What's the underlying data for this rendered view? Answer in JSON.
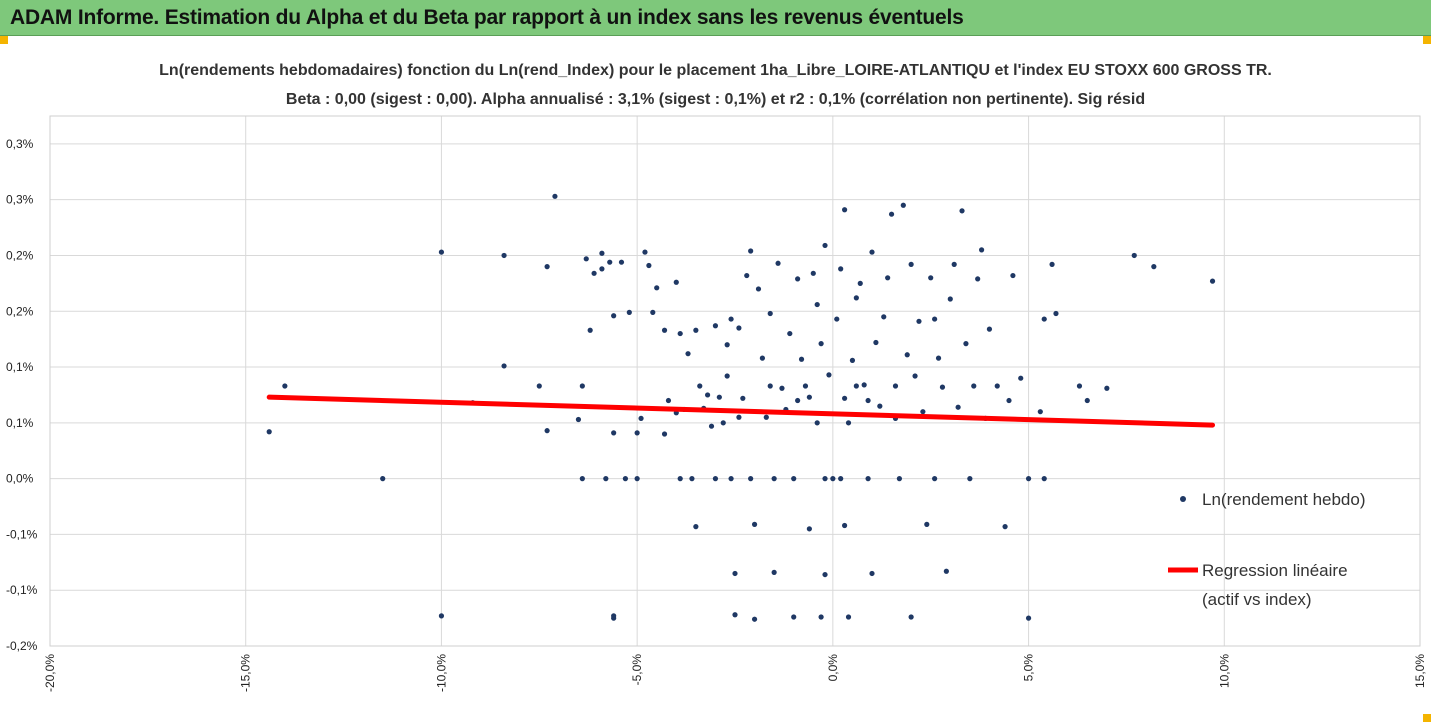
{
  "banner": {
    "title": "ADAM Informe. Estimation du Alpha et du Beta par rapport à un index sans les revenus éventuels"
  },
  "colors": {
    "banner": "#7ec87b",
    "accent_corner": "#f4b400",
    "points": "#1f3864",
    "regression": "#ff0000",
    "grid": "#d9d9d9"
  },
  "chart_data": {
    "type": "scatter",
    "title": "Ln(rendements hebdomadaires) fonction du Ln(rend_Index) pour le placement 1ha_Libre_LOIRE-ATLANTIQU et l'index EU STOXX 600 GROSS TR.",
    "subtitle": "Beta : 0,00 (sigest : 0,00). Alpha annualisé : 3,1% (sigest : 0,1%) et r2 : 0,1% (corrélation non pertinente). Sig résid",
    "xlim": [
      -20,
      15
    ],
    "ylim": [
      -0.15,
      0.325
    ],
    "x_tick_labels": [
      "-20,0%",
      "-15,0%",
      "-10,0%",
      "-5,0%",
      "0,0%",
      "5,0%",
      "10,0%",
      "15,0%"
    ],
    "x_ticks": [
      -20,
      -15,
      -10,
      -5,
      0,
      5,
      10,
      15
    ],
    "y_tick_labels": [
      "0,3%",
      "0,3%",
      "0,2%",
      "0,2%",
      "0,1%",
      "0,1%",
      "0,0%",
      "-0,1%",
      "-0,1%",
      "-0,2%"
    ],
    "y_ticks": [
      0.3,
      0.25,
      0.2,
      0.15,
      0.1,
      0.05,
      0.0,
      -0.05,
      -0.1,
      -0.15
    ],
    "grid": true,
    "legend_position": "right",
    "series": [
      {
        "name": "Ln(rendement hebdo)",
        "kind": "points",
        "points": [
          [
            -14.4,
            0.042
          ],
          [
            -14.0,
            0.083
          ],
          [
            -11.5,
            0.0
          ],
          [
            -10.0,
            0.203
          ],
          [
            -10.0,
            -0.123
          ],
          [
            -9.2,
            0.068
          ],
          [
            -8.4,
            0.2
          ],
          [
            -8.4,
            0.101
          ],
          [
            -7.5,
            0.083
          ],
          [
            -7.3,
            0.19
          ],
          [
            -7.3,
            0.043
          ],
          [
            -7.1,
            0.253
          ],
          [
            -6.5,
            0.053
          ],
          [
            -6.4,
            0.083
          ],
          [
            -6.3,
            0.197
          ],
          [
            -6.2,
            0.133
          ],
          [
            -6.4,
            0.0
          ],
          [
            -6.1,
            0.184
          ],
          [
            -5.9,
            0.202
          ],
          [
            -5.9,
            0.188
          ],
          [
            -5.8,
            0.0
          ],
          [
            -5.7,
            0.194
          ],
          [
            -5.6,
            0.146
          ],
          [
            -5.6,
            0.041
          ],
          [
            -5.6,
            -0.123
          ],
          [
            -5.6,
            -0.125
          ],
          [
            -5.4,
            0.194
          ],
          [
            -5.3,
            0.0
          ],
          [
            -5.2,
            0.149
          ],
          [
            -5.0,
            0.0
          ],
          [
            -5.0,
            0.041
          ],
          [
            -4.9,
            0.054
          ],
          [
            -4.8,
            0.203
          ],
          [
            -4.7,
            0.191
          ],
          [
            -4.6,
            0.149
          ],
          [
            -4.5,
            0.171
          ],
          [
            -4.3,
            0.133
          ],
          [
            -4.3,
            0.04
          ],
          [
            -4.2,
            0.07
          ],
          [
            -4.0,
            0.176
          ],
          [
            -4.0,
            0.059
          ],
          [
            -3.9,
            0.13
          ],
          [
            -3.9,
            0.0
          ],
          [
            -3.8,
            0.062
          ],
          [
            -3.7,
            0.112
          ],
          [
            -3.6,
            0.0
          ],
          [
            -3.5,
            0.133
          ],
          [
            -3.5,
            -0.043
          ],
          [
            -3.4,
            0.083
          ],
          [
            -3.3,
            0.063
          ],
          [
            -3.2,
            0.075
          ],
          [
            -3.1,
            0.047
          ],
          [
            -3.0,
            0.137
          ],
          [
            -3.0,
            0.0
          ],
          [
            -2.9,
            0.073
          ],
          [
            -2.8,
            0.05
          ],
          [
            -2.7,
            0.092
          ],
          [
            -2.7,
            0.12
          ],
          [
            -2.6,
            0.0
          ],
          [
            -2.5,
            -0.085
          ],
          [
            -2.5,
            -0.122
          ],
          [
            -2.4,
            0.135
          ],
          [
            -2.4,
            0.055
          ],
          [
            -2.3,
            0.072
          ],
          [
            -2.2,
            0.182
          ],
          [
            -2.1,
            0.204
          ],
          [
            -2.1,
            0.0
          ],
          [
            -2.0,
            -0.041
          ],
          [
            -2.0,
            -0.126
          ],
          [
            -1.9,
            0.17
          ],
          [
            -1.8,
            0.108
          ],
          [
            -1.7,
            0.055
          ],
          [
            -1.6,
            0.148
          ],
          [
            -1.5,
            0.0
          ],
          [
            -1.5,
            -0.084
          ],
          [
            -1.4,
            0.193
          ],
          [
            -1.3,
            0.081
          ],
          [
            -1.2,
            0.062
          ],
          [
            -1.1,
            0.13
          ],
          [
            -1.0,
            0.0
          ],
          [
            -1.0,
            -0.124
          ],
          [
            -0.9,
            0.179
          ],
          [
            -0.8,
            0.107
          ],
          [
            -0.7,
            0.083
          ],
          [
            -0.6,
            -0.045
          ],
          [
            -0.5,
            0.184
          ],
          [
            -0.4,
            0.156
          ],
          [
            -0.3,
            0.121
          ],
          [
            -0.2,
            0.209
          ],
          [
            -0.2,
            -0.086
          ],
          [
            -0.1,
            0.093
          ],
          [
            0.0,
            0.0
          ],
          [
            0.1,
            0.143
          ],
          [
            0.2,
            0.188
          ],
          [
            0.3,
            0.072
          ],
          [
            0.3,
            -0.042
          ],
          [
            0.4,
            -0.124
          ],
          [
            0.5,
            0.106
          ],
          [
            0.6,
            0.162
          ],
          [
            0.7,
            0.175
          ],
          [
            0.8,
            0.084
          ],
          [
            0.9,
            0.0
          ],
          [
            1.0,
            0.203
          ],
          [
            1.0,
            -0.085
          ],
          [
            1.1,
            0.122
          ],
          [
            1.2,
            0.065
          ],
          [
            1.3,
            0.145
          ],
          [
            1.4,
            0.18
          ],
          [
            1.5,
            0.237
          ],
          [
            1.6,
            0.054
          ],
          [
            1.7,
            0.0
          ],
          [
            1.8,
            0.245
          ],
          [
            1.9,
            0.111
          ],
          [
            2.0,
            0.192
          ],
          [
            2.0,
            -0.124
          ],
          [
            2.1,
            0.092
          ],
          [
            2.2,
            0.141
          ],
          [
            2.3,
            0.06
          ],
          [
            2.4,
            -0.041
          ],
          [
            2.5,
            0.18
          ],
          [
            2.6,
            0.0
          ],
          [
            2.7,
            0.108
          ],
          [
            2.8,
            0.082
          ],
          [
            2.9,
            -0.083
          ],
          [
            3.0,
            0.161
          ],
          [
            3.1,
            0.192
          ],
          [
            3.2,
            0.064
          ],
          [
            3.3,
            0.24
          ],
          [
            3.4,
            0.121
          ],
          [
            3.5,
            0.0
          ],
          [
            3.6,
            0.083
          ],
          [
            3.7,
            0.179
          ],
          [
            3.8,
            0.205
          ],
          [
            3.9,
            0.054
          ],
          [
            4.0,
            0.134
          ],
          [
            4.2,
            0.083
          ],
          [
            4.4,
            -0.043
          ],
          [
            4.5,
            0.07
          ],
          [
            4.6,
            0.182
          ],
          [
            4.8,
            0.09
          ],
          [
            5.0,
            0.0
          ],
          [
            5.0,
            -0.125
          ],
          [
            5.3,
            0.06
          ],
          [
            5.4,
            0.0
          ],
          [
            5.4,
            0.143
          ],
          [
            5.6,
            0.192
          ],
          [
            5.7,
            0.148
          ],
          [
            6.3,
            0.083
          ],
          [
            6.5,
            0.07
          ],
          [
            7.0,
            0.081
          ],
          [
            7.7,
            0.2
          ],
          [
            8.2,
            0.19
          ],
          [
            9.7,
            0.177
          ],
          [
            -0.6,
            0.073
          ],
          [
            0.6,
            0.083
          ],
          [
            -1.6,
            0.083
          ],
          [
            1.6,
            0.083
          ],
          [
            -0.4,
            0.05
          ],
          [
            0.4,
            0.05
          ],
          [
            -0.9,
            0.07
          ],
          [
            0.9,
            0.07
          ],
          [
            -0.2,
            0.0
          ],
          [
            0.2,
            0.0
          ],
          [
            -0.3,
            -0.124
          ],
          [
            0.3,
            0.241
          ],
          [
            -2.6,
            0.143
          ],
          [
            2.6,
            0.143
          ]
        ]
      },
      {
        "name": "Regression linéaire (actif vs index)",
        "kind": "line",
        "points": [
          [
            -14.4,
            0.073
          ],
          [
            9.7,
            0.048
          ]
        ]
      }
    ],
    "legend": [
      {
        "label": "Ln(rendement hebdo)",
        "marker": "dot"
      },
      {
        "label_line1": "Regression linéaire",
        "label_line2": "(actif vs index)",
        "marker": "line"
      }
    ]
  }
}
